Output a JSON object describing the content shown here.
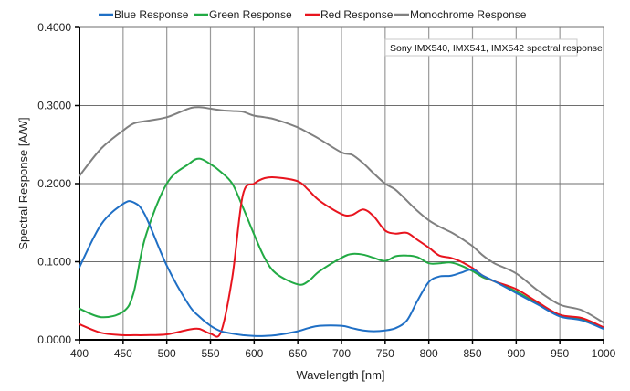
{
  "chart_data": {
    "type": "line",
    "title": "",
    "annotation": "Sony IMX540, IMX541, IMX542 spectral response",
    "xlabel": "Wavelength [nm]",
    "ylabel": "Spectral Response [A/W]",
    "xlim": [
      400,
      1000
    ],
    "ylim": [
      0,
      0.4
    ],
    "xticks": [
      400,
      450,
      500,
      550,
      600,
      650,
      700,
      750,
      800,
      850,
      900,
      950,
      1000
    ],
    "yticks": [
      0.0,
      0.1,
      0.2,
      0.3,
      0.4
    ],
    "ytick_labels": [
      "0.0000",
      "0.1000",
      "0.2000",
      "0.3000",
      "0.4000"
    ],
    "grid": true,
    "legend_position": "top",
    "x": [
      400,
      425,
      450,
      462,
      475,
      500,
      525,
      537,
      550,
      562,
      575,
      587,
      600,
      612,
      625,
      650,
      662,
      675,
      700,
      712,
      725,
      737,
      750,
      762,
      775,
      787,
      800,
      812,
      825,
      837,
      850,
      862,
      875,
      900,
      925,
      950,
      975,
      1000
    ],
    "series": [
      {
        "name": "Blue Response",
        "color": "#1f6fc5",
        "values": [
          0.093,
          0.148,
          0.174,
          0.176,
          0.16,
          0.095,
          0.045,
          0.03,
          0.018,
          0.011,
          0.008,
          0.006,
          0.005,
          0.005,
          0.006,
          0.011,
          0.015,
          0.018,
          0.018,
          0.015,
          0.012,
          0.011,
          0.012,
          0.015,
          0.025,
          0.05,
          0.074,
          0.081,
          0.082,
          0.086,
          0.09,
          0.082,
          0.075,
          0.06,
          0.045,
          0.03,
          0.025,
          0.014
        ]
      },
      {
        "name": "Green Response",
        "color": "#22aa44",
        "values": [
          0.04,
          0.029,
          0.036,
          0.06,
          0.13,
          0.2,
          0.225,
          0.232,
          0.225,
          0.215,
          0.2,
          0.17,
          0.135,
          0.105,
          0.085,
          0.071,
          0.075,
          0.088,
          0.105,
          0.11,
          0.109,
          0.105,
          0.101,
          0.107,
          0.108,
          0.106,
          0.098,
          0.098,
          0.099,
          0.095,
          0.088,
          0.08,
          0.075,
          0.062,
          0.046,
          0.032,
          0.026,
          0.015
        ]
      },
      {
        "name": "Red Response",
        "color": "#e8141e",
        "values": [
          0.02,
          0.009,
          0.006,
          0.006,
          0.006,
          0.007,
          0.013,
          0.014,
          0.008,
          0.01,
          0.08,
          0.185,
          0.2,
          0.207,
          0.208,
          0.203,
          0.192,
          0.178,
          0.161,
          0.16,
          0.167,
          0.158,
          0.14,
          0.136,
          0.137,
          0.128,
          0.118,
          0.108,
          0.105,
          0.1,
          0.092,
          0.082,
          0.075,
          0.065,
          0.048,
          0.032,
          0.028,
          0.016
        ]
      },
      {
        "name": "Monochrome Response",
        "color": "#808080",
        "values": [
          0.21,
          0.245,
          0.268,
          0.277,
          0.28,
          0.285,
          0.296,
          0.298,
          0.296,
          0.294,
          0.293,
          0.292,
          0.287,
          0.285,
          0.282,
          0.272,
          0.265,
          0.257,
          0.24,
          0.237,
          0.226,
          0.213,
          0.2,
          0.192,
          0.178,
          0.165,
          0.153,
          0.145,
          0.138,
          0.13,
          0.12,
          0.108,
          0.098,
          0.085,
          0.063,
          0.045,
          0.038,
          0.022
        ]
      }
    ]
  },
  "colors": {
    "grid": "#9a9a9a",
    "axis": "#000000",
    "background": "#ffffff"
  }
}
